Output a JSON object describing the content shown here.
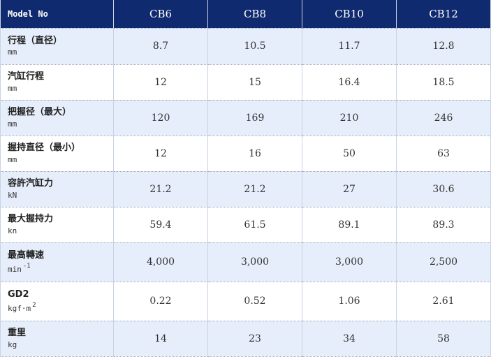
{
  "header": {
    "model_label": "Model No",
    "models": [
      "CB6",
      "CB8",
      "CB10",
      "CB12"
    ]
  },
  "rows": [
    {
      "name": "行程（直径）",
      "unit": "mm",
      "unit_sup": "",
      "values": [
        "8.7",
        "10.5",
        "11.7",
        "12.8"
      ]
    },
    {
      "name": "汽缸行程",
      "unit": "mm",
      "unit_sup": "",
      "values": [
        "12",
        "15",
        "16.4",
        "18.5"
      ]
    },
    {
      "name": "把握径（最大）",
      "unit": "mm",
      "unit_sup": "",
      "values": [
        "120",
        "169",
        "210",
        "246"
      ]
    },
    {
      "name": "握持直径（最小）",
      "unit": "mm",
      "unit_sup": "",
      "values": [
        "12",
        "16",
        "50",
        "63"
      ]
    },
    {
      "name": "容許汽缸力",
      "unit": "kN",
      "unit_sup": "",
      "values": [
        "21.2",
        "21.2",
        "27",
        "30.6"
      ]
    },
    {
      "name": "最大握持力",
      "unit": "kn",
      "unit_sup": "",
      "values": [
        "59.4",
        "61.5",
        "89.1",
        "89.3"
      ]
    },
    {
      "name": "最高轉速",
      "unit": "min",
      "unit_sup": "-1",
      "values": [
        "4,000",
        "3,000",
        "3,000",
        "2,500"
      ]
    },
    {
      "name": "GD2",
      "unit": "kgf·m",
      "unit_sup": "2",
      "values": [
        "0.22",
        "0.52",
        "1.06",
        "2.61"
      ]
    },
    {
      "name": "重里",
      "unit": "kg",
      "unit_sup": "",
      "values": [
        "14",
        "23",
        "34",
        "58"
      ]
    }
  ],
  "colors": {
    "header_bg": "#0f2a6e",
    "row_shaded": "#e6eefb",
    "row_plain": "#ffffff"
  }
}
